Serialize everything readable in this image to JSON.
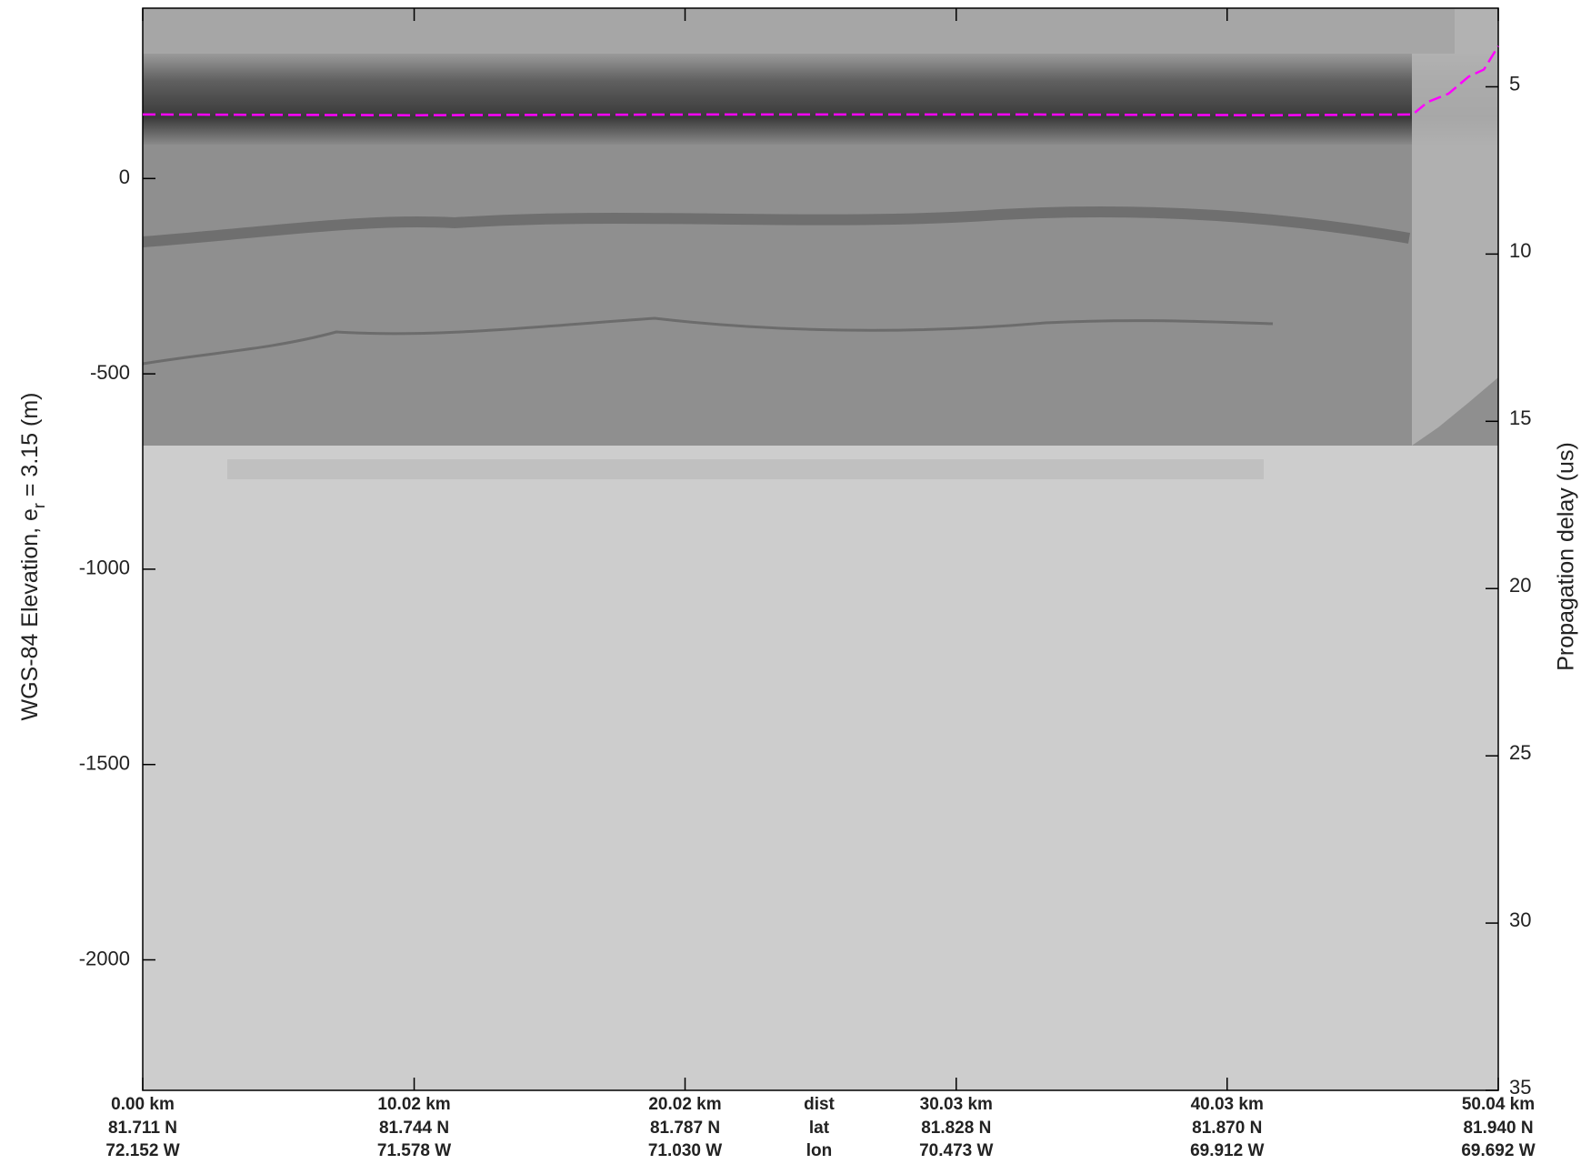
{
  "chart_data": {
    "type": "line",
    "ylabel": [
      "WGS-84 Elevation, e",
      "r",
      " = 3.15 (m)"
    ],
    "y2label": "Propagation delay (us)",
    "xlim": [
      0,
      50.04
    ],
    "xticks": [
      {
        "value": 0,
        "label": "0.00 km"
      },
      {
        "value": 10.02,
        "label": "10.02 km"
      },
      {
        "value": 20.02,
        "label": "20.02 km"
      },
      {
        "value": 30.03,
        "label": "30.03 km"
      },
      {
        "value": 40.03,
        "label": "40.03 km"
      },
      {
        "value": 50.04,
        "label": "50.04 km"
      }
    ],
    "lat_labels": [
      "81.711 N",
      "81.744 N",
      "81.787 N",
      "81.828 N",
      "81.870 N",
      "81.940 N"
    ],
    "lon_labels": [
      "72.152 W",
      "71.578 W",
      "71.030 W",
      "70.473 W",
      "69.912 W",
      "69.692 W"
    ],
    "row_labels": [
      "dist",
      "lat",
      "lon"
    ],
    "ylim": [
      -2334,
      436
    ],
    "yticks": [
      -2000,
      -1500,
      -1000,
      -500,
      0
    ],
    "y2lim": [
      2.65,
      35
    ],
    "y2ticks": [
      5,
      10,
      15,
      20,
      25,
      30,
      35
    ],
    "series": [
      {
        "color": "#ff00ff",
        "dashed": true,
        "x": [
          0,
          9.79,
          21.1,
          32.4,
          41.8,
          46.88,
          47.44,
          48.2,
          48.95,
          49.51,
          50.04
        ],
        "values": [
          164,
          162,
          164,
          164,
          162,
          164,
          196,
          217,
          261,
          279,
          339
        ]
      }
    ]
  }
}
